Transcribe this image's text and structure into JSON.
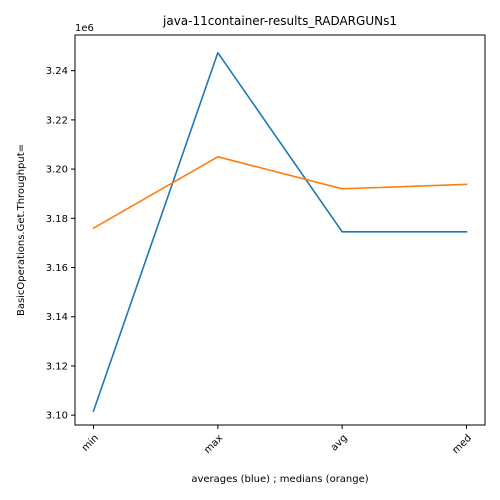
{
  "chart_data": {
    "type": "line",
    "title": "java-11container-results_RADARGUNs1",
    "xlabel": "averages (blue) ; medians (orange)",
    "ylabel": "BasicOperations.Get.Throughput=",
    "y_offset_label": "1e6",
    "categories": [
      "min",
      "max",
      "avg",
      "med"
    ],
    "series": [
      {
        "color": "#1f77b4",
        "values": [
          3101700,
          3247300,
          3174500,
          3174500
        ]
      },
      {
        "color": "#ff7f0e",
        "values": [
          3176000,
          3205000,
          3192000,
          3193800
        ]
      }
    ],
    "ylim": [
      3096000,
      3254500
    ],
    "yticks": [
      3100000,
      3120000,
      3140000,
      3160000,
      3180000,
      3200000,
      3220000,
      3240000
    ],
    "ytick_labels": [
      "3.10",
      "3.12",
      "3.14",
      "3.16",
      "3.18",
      "3.20",
      "3.22",
      "3.24"
    ],
    "x_tick_rotation_deg": 45,
    "grid": false
  }
}
